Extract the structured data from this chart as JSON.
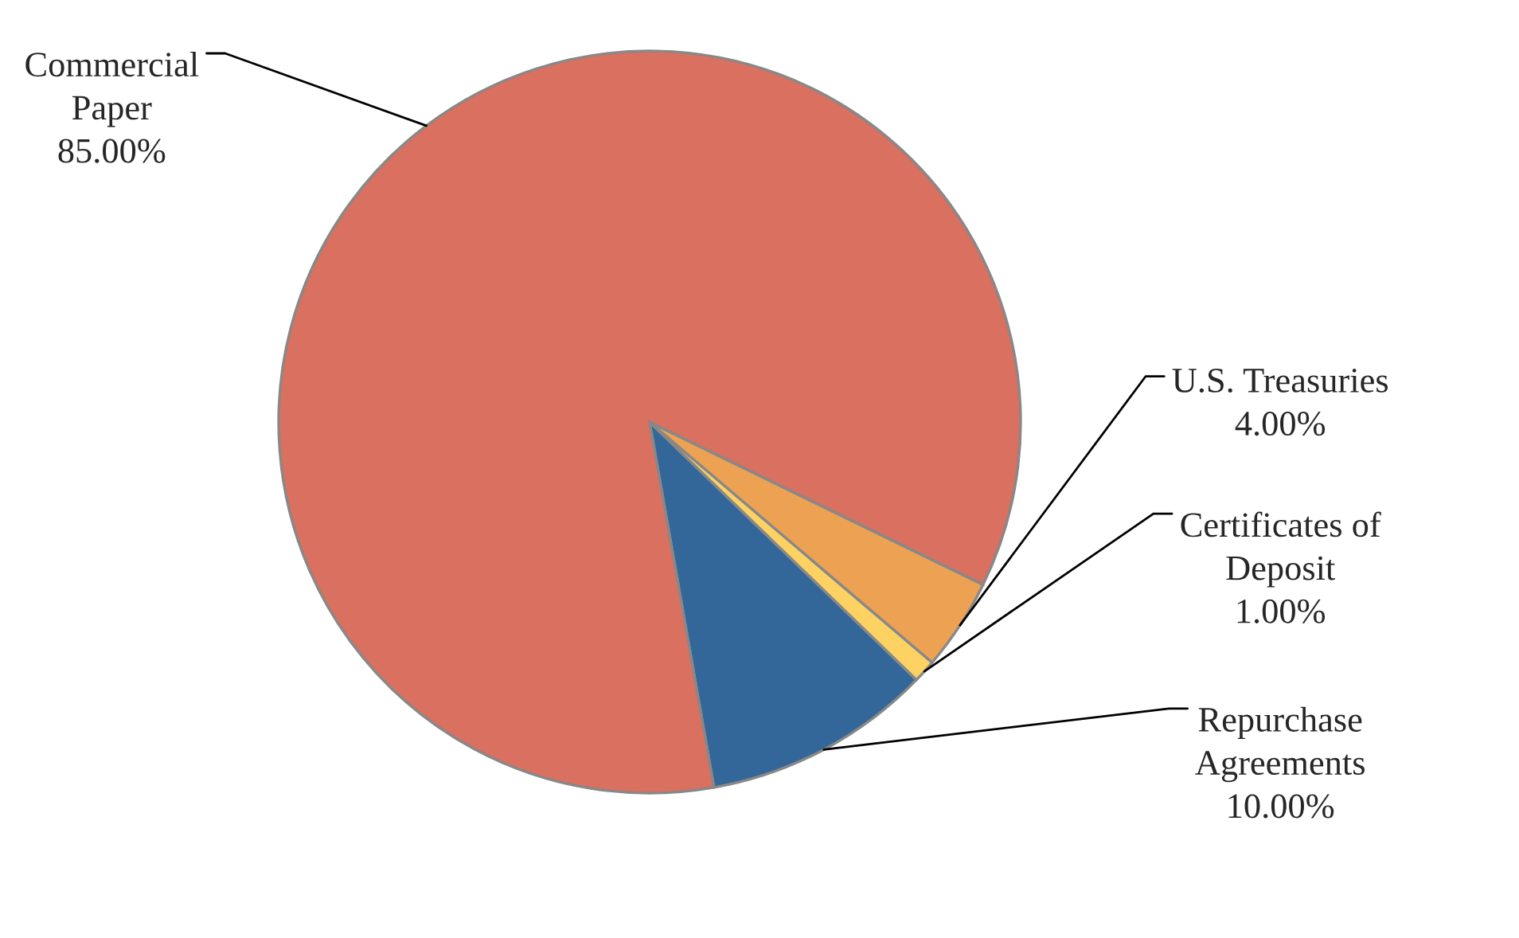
{
  "chart_data": {
    "type": "pie",
    "categories": [
      "Repurchase\nAgreements",
      "Certificates of\nDeposit",
      "U.S. Treasuries",
      "Commercial\nPaper"
    ],
    "values": [
      10,
      1,
      4,
      85
    ],
    "value_labels": [
      "10.00%",
      "1.00%",
      "4.00%",
      "85.00%"
    ],
    "colors": [
      "#336699",
      "#fdd262",
      "#eda253",
      "#d97060"
    ],
    "legend": false
  }
}
